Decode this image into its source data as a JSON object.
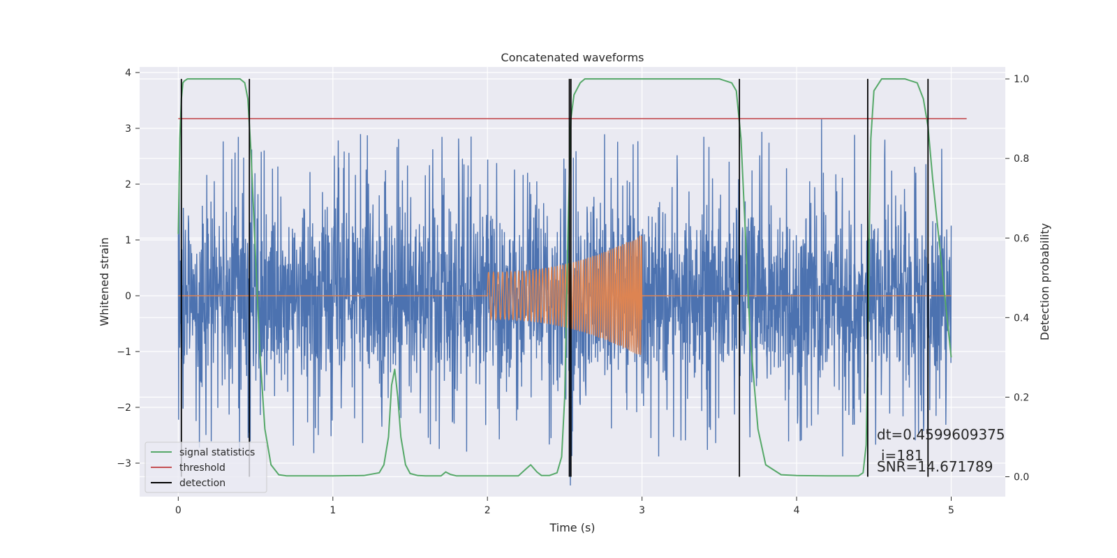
{
  "chart_data": {
    "type": "line",
    "title": "Concatenated waveforms",
    "xlabel": "Time (s)",
    "ylabel": "Whitened strain",
    "y2label": "Detection probability",
    "xlim": [
      -0.25,
      5.35
    ],
    "ylim": [
      -3.6,
      4.1
    ],
    "y2lim": [
      -0.05,
      1.03
    ],
    "xticks": [
      0,
      1,
      2,
      3,
      4,
      5
    ],
    "xtick_labels": [
      "0",
      "1",
      "2",
      "3",
      "4",
      "5"
    ],
    "yticks": [
      -3,
      -2,
      -1,
      0,
      1,
      2,
      3,
      4
    ],
    "ytick_labels": [
      "−3",
      "−2",
      "−1",
      "0",
      "1",
      "2",
      "3",
      "4"
    ],
    "y2ticks": [
      0.0,
      0.2,
      0.4,
      0.6,
      0.8,
      1.0
    ],
    "y2tick_labels": [
      "0.0",
      "0.2",
      "0.4",
      "0.6",
      "0.8",
      "1.0"
    ],
    "grid": true,
    "legend_position": "lower-left",
    "colors": {
      "strain": "#4c72b0",
      "waveform": "#dd8452",
      "signal_statistics": "#55a868",
      "threshold": "#c44e52",
      "detection": "#000000",
      "background": "#eaeaf2",
      "grid": "#ffffff"
    },
    "series": [
      {
        "name": "signal statistics",
        "axis": "right",
        "x": [
          0.0,
          0.01,
          0.02,
          0.03,
          0.04,
          0.06,
          0.1,
          0.2,
          0.3,
          0.4,
          0.43,
          0.45,
          0.47,
          0.5,
          0.53,
          0.56,
          0.6,
          0.65,
          0.7,
          0.8,
          1.0,
          1.2,
          1.3,
          1.33,
          1.36,
          1.38,
          1.4,
          1.42,
          1.44,
          1.47,
          1.5,
          1.55,
          1.6,
          1.7,
          1.73,
          1.76,
          1.8,
          2.0,
          2.2,
          2.25,
          2.28,
          2.32,
          2.35,
          2.4,
          2.45,
          2.48,
          2.5,
          2.52,
          2.54,
          2.56,
          2.6,
          2.63,
          2.7,
          3.0,
          3.3,
          3.5,
          3.58,
          3.61,
          3.64,
          3.67,
          3.7,
          3.75,
          3.8,
          3.9,
          4.0,
          4.2,
          4.4,
          4.43,
          4.45,
          4.46,
          4.47,
          4.48,
          4.5,
          4.55,
          4.7,
          4.78,
          4.82,
          4.85,
          4.88,
          4.92,
          4.96,
          5.0
        ],
        "values": [
          0.61,
          0.85,
          0.95,
          0.99,
          0.995,
          1.0,
          1.0,
          1.0,
          1.0,
          1.0,
          0.99,
          0.95,
          0.82,
          0.55,
          0.3,
          0.12,
          0.03,
          0.005,
          0.002,
          0.002,
          0.002,
          0.003,
          0.01,
          0.03,
          0.1,
          0.23,
          0.27,
          0.2,
          0.1,
          0.03,
          0.008,
          0.003,
          0.002,
          0.002,
          0.012,
          0.006,
          0.002,
          0.002,
          0.002,
          0.02,
          0.03,
          0.012,
          0.003,
          0.003,
          0.01,
          0.05,
          0.2,
          0.6,
          0.9,
          0.96,
          0.99,
          1.0,
          1.0,
          1.0,
          1.0,
          1.0,
          0.99,
          0.97,
          0.85,
          0.6,
          0.35,
          0.12,
          0.03,
          0.005,
          0.003,
          0.002,
          0.002,
          0.01,
          0.08,
          0.3,
          0.6,
          0.85,
          0.97,
          1.0,
          1.0,
          0.99,
          0.95,
          0.88,
          0.75,
          0.6,
          0.45,
          0.3
        ]
      },
      {
        "name": "threshold",
        "axis": "right",
        "x": [
          0.0,
          5.1
        ],
        "values": [
          0.9,
          0.9
        ]
      },
      {
        "name": "detection",
        "axis": "right",
        "x": [
          0.02,
          0.46,
          2.53,
          2.54,
          3.63,
          4.46,
          4.85
        ],
        "y_range": [
          0.0,
          1.0
        ]
      }
    ],
    "strain": {
      "x_range": [
        0.0,
        5.0
      ],
      "noise_std": 0.85,
      "typical_peak": 2.6
    },
    "injected_waveform": {
      "x_range": [
        2.0,
        3.0
      ],
      "start_amplitude": 0.42,
      "end_amplitude": 1.1,
      "chirp": true
    },
    "annotations": {
      "dt": "dt=0.4599609375",
      "i": "i=181",
      "snr": "SNR=14.671789"
    }
  }
}
